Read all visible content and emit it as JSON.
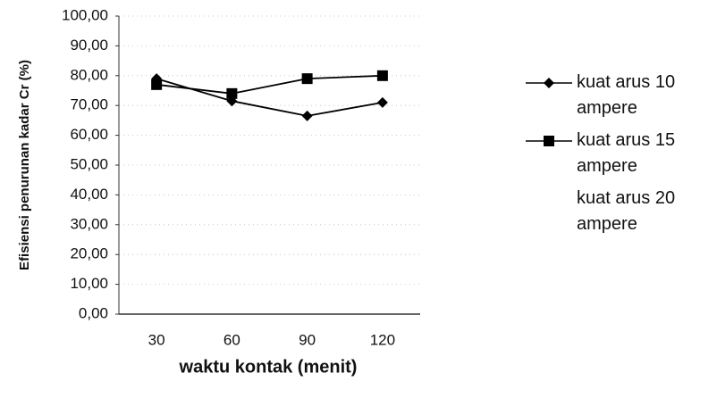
{
  "chart_data": {
    "type": "line",
    "ylabel": "Efisiensi penurunan kadar Cr (%)",
    "xlabel": "waktu kontak (menit)",
    "categories": [
      "30",
      "60",
      "90",
      "120"
    ],
    "series": [
      {
        "name": "kuat arus 10 ampere",
        "color": "#000000",
        "marker": "diamond",
        "values": [
          79,
          71.5,
          66.5,
          71
        ]
      },
      {
        "name": "kuat arus 15 ampere",
        "color": "#000000",
        "marker": "square",
        "values": [
          77,
          74,
          79,
          80
        ]
      },
      {
        "name": "kuat arus 20 ampere",
        "color": "#000000",
        "values": [
          null,
          null,
          null,
          null
        ]
      }
    ],
    "ylim": [
      0,
      100
    ],
    "yticks": [
      {
        "value": 0,
        "label": "0,00"
      },
      {
        "value": 10,
        "label": "10,00"
      },
      {
        "value": 20,
        "label": "20,00"
      },
      {
        "value": 30,
        "label": "30,00"
      },
      {
        "value": 40,
        "label": "40,00"
      },
      {
        "value": 50,
        "label": "50,00"
      },
      {
        "value": 60,
        "label": "60,00"
      },
      {
        "value": 70,
        "label": "70,00"
      },
      {
        "value": 80,
        "label": "80,00"
      },
      {
        "value": 90,
        "label": "90,00"
      },
      {
        "value": 100,
        "label": "100,00"
      }
    ],
    "grid": true
  }
}
